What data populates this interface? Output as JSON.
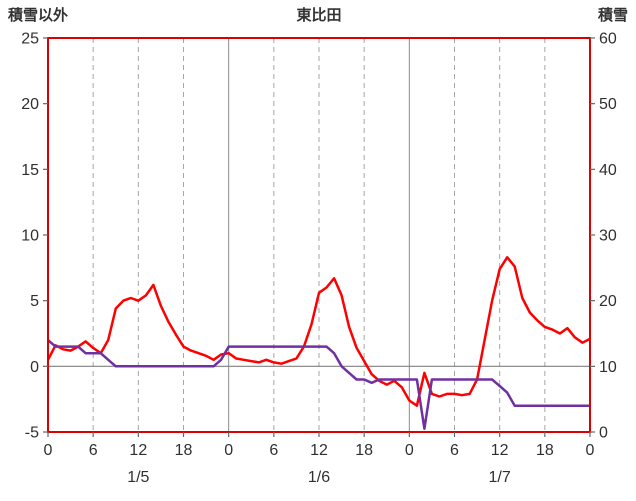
{
  "header": {
    "left_label": "積雪以外",
    "title": "東比田",
    "right_label": "積雪"
  },
  "colors": {
    "temperature_line": "#ff0000",
    "snow_line": "#7030a0",
    "frame": "#dd0000",
    "grid": "#a6a6a6",
    "day_grid": "#8c8c8c",
    "zero_line": "#808080",
    "tick": "#666666",
    "text": "#303030"
  },
  "chart_data": {
    "type": "line",
    "title": "東比田",
    "left_axis": {
      "label": "積雪以外",
      "min": -5,
      "max": 25,
      "ticks": [
        -5,
        0,
        5,
        10,
        15,
        20,
        25
      ]
    },
    "right_axis": {
      "label": "積雪",
      "min": 0,
      "max": 60,
      "ticks": [
        0,
        10,
        20,
        30,
        40,
        50,
        60
      ]
    },
    "x_axis": {
      "hours_total": 72,
      "tick_interval": 6,
      "tick_labels": [
        "0",
        "6",
        "12",
        "18",
        "0",
        "6",
        "12",
        "18",
        "0",
        "6",
        "12",
        "18",
        "0"
      ],
      "day_labels": [
        "1/5",
        "1/6",
        "1/7"
      ],
      "day_label_hours": [
        12,
        36,
        60
      ]
    },
    "grid": {
      "vertical_dashed_every_6h": true,
      "solid_at_day_boundaries": true,
      "horizontal_only_at_zero": true
    },
    "legend": "none",
    "series": [
      {
        "name": "temperature-non-snow",
        "axis": "left",
        "color_key": "temperature_line",
        "values": [
          0.5,
          1.6,
          1.3,
          1.2,
          1.5,
          1.9,
          1.4,
          1.0,
          2.0,
          4.4,
          5.0,
          5.2,
          5.0,
          5.4,
          6.2,
          4.6,
          3.4,
          2.4,
          1.5,
          1.2,
          1.0,
          0.8,
          0.5,
          0.9,
          1.0,
          0.6,
          0.5,
          0.4,
          0.3,
          0.5,
          0.3,
          0.2,
          0.4,
          0.6,
          1.5,
          3.2,
          5.6,
          6.0,
          6.7,
          5.4,
          3.0,
          1.4,
          0.4,
          -0.6,
          -1.1,
          -1.4,
          -1.1,
          -1.6,
          -2.6,
          -3.0,
          -0.5,
          -2.1,
          -2.3,
          -2.1,
          -2.1,
          -2.2,
          -2.1,
          -1.0,
          2.0,
          5.0,
          7.4,
          8.3,
          7.6,
          5.2,
          4.1,
          3.5,
          3.0,
          2.8,
          2.5,
          2.9,
          2.2,
          1.8,
          2.1
        ]
      },
      {
        "name": "snow-depth",
        "axis": "right",
        "color_key": "snow_line",
        "values": [
          14,
          13,
          13,
          13,
          13,
          12,
          12,
          12,
          11,
          10,
          10,
          10,
          10,
          10,
          10,
          10,
          10,
          10,
          10,
          10,
          10,
          10,
          10,
          11,
          13,
          13,
          13,
          13,
          13,
          13,
          13,
          13,
          13,
          13,
          13,
          13,
          13,
          13,
          12,
          10,
          9,
          8,
          8,
          7.5,
          8,
          8,
          8,
          8,
          8,
          8,
          0.5,
          8,
          8,
          8,
          8,
          8,
          8,
          8,
          8,
          8,
          7,
          6,
          4,
          4,
          4,
          4,
          4,
          4,
          4,
          4,
          4,
          4,
          4
        ]
      }
    ]
  }
}
